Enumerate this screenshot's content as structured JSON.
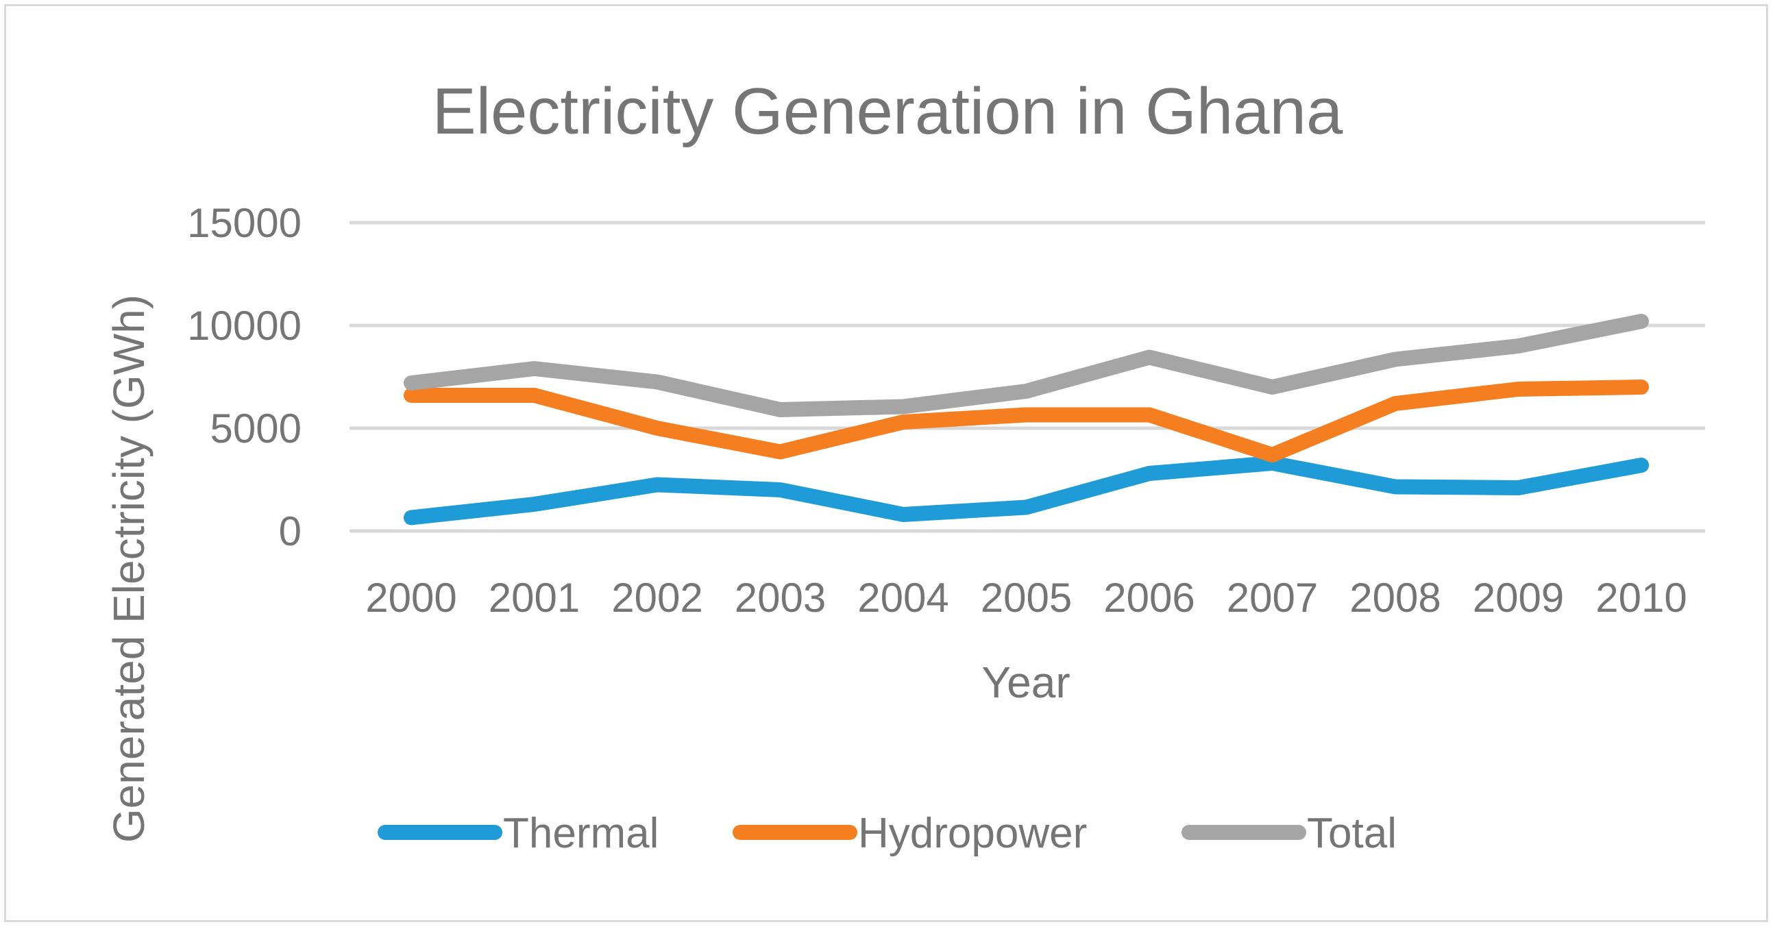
{
  "chart_data": {
    "type": "line",
    "title": "Electricity Generation in Ghana",
    "xlabel": "Year",
    "ylabel": "Generated Electricity (GWh)",
    "categories": [
      "2000",
      "2001",
      "2002",
      "2003",
      "2004",
      "2005",
      "2006",
      "2007",
      "2008",
      "2009",
      "2010"
    ],
    "ylim": [
      0,
      15000
    ],
    "yticks": [
      "15000",
      "10000",
      "5000",
      "0"
    ],
    "ytick_values": [
      15000,
      10000,
      5000,
      0
    ],
    "grid": true,
    "legend_position": "bottom",
    "series": [
      {
        "name": "Thermal",
        "color": "#1f9bd7",
        "values": [
          650,
          1300,
          2250,
          2000,
          800,
          1150,
          2800,
          3300,
          2150,
          2100,
          3200
        ]
      },
      {
        "name": "Hydropower",
        "color": "#f57f20",
        "values": [
          6600,
          6600,
          5000,
          3850,
          5300,
          5650,
          5650,
          3700,
          6200,
          6900,
          7000
        ]
      },
      {
        "name": "Total",
        "color": "#a5a5a5",
        "values": [
          7200,
          7900,
          7250,
          5900,
          6050,
          6800,
          8450,
          7000,
          8350,
          9000,
          10200
        ]
      }
    ]
  }
}
